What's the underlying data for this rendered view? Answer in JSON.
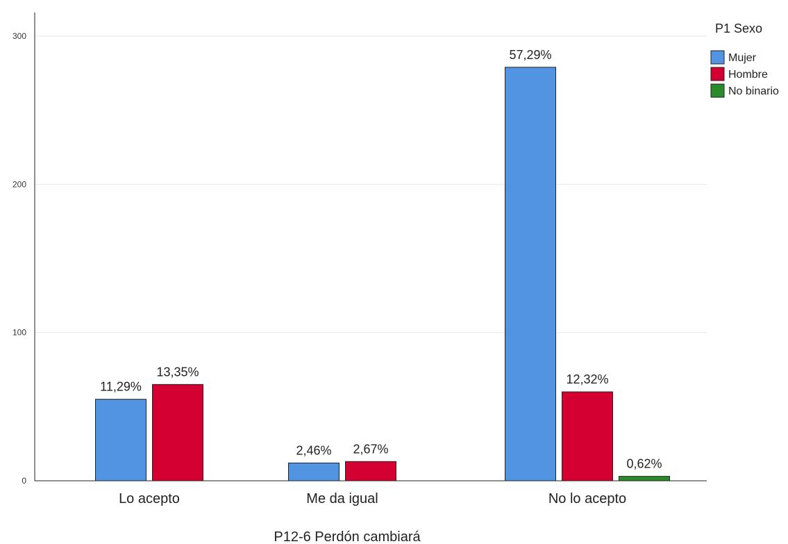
{
  "chart_data": {
    "type": "bar",
    "xlabel": "P12-6 Perdón cambiará",
    "ylabel": "",
    "ylim": [
      0,
      315
    ],
    "yticks": [
      0,
      100,
      200,
      300
    ],
    "grid": true,
    "categories": [
      "Lo acepto",
      "Me da igual",
      "No lo acepto"
    ],
    "legend": {
      "title": "P1 Sexo",
      "placement": "top-right"
    },
    "series": [
      {
        "name": "Mujer",
        "color": "#5294e2",
        "values": [
          55,
          12,
          279
        ],
        "labels": [
          "11,29%",
          "2,46%",
          "57,29%"
        ]
      },
      {
        "name": "Hombre",
        "color": "#d50032",
        "values": [
          65,
          13,
          60
        ],
        "labels": [
          "13,35%",
          "2,67%",
          "12,32%"
        ]
      },
      {
        "name": "No binario",
        "color": "#2a8b2a",
        "values": [
          null,
          null,
          3
        ],
        "labels": [
          null,
          null,
          "0,62%"
        ]
      }
    ]
  }
}
